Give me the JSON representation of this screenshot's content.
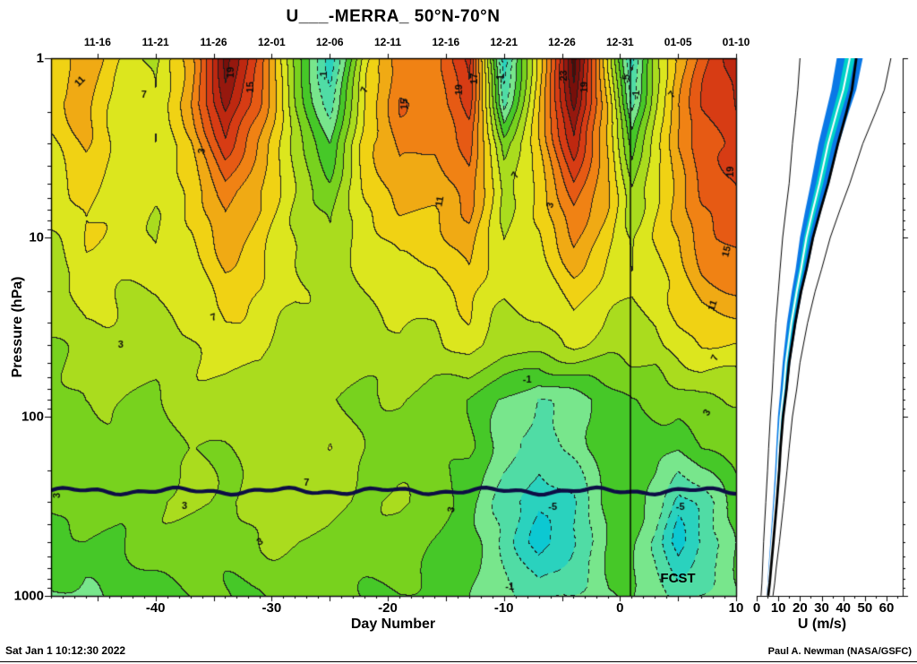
{
  "title": "U___-MERRA_ 50°N-70°N",
  "footer": {
    "timestamp": "Sat Jan 1 10:12:30 2022",
    "credit": "Paul A. Newman (NASA/GSFC)"
  },
  "chart_data": [
    {
      "type": "heatmap",
      "title": "U___-MERRA_ 50°N-70°N",
      "xlabel": "Day Number",
      "ylabel": "Pressure (hPa)",
      "fcst_label": "FCST",
      "xlim": [
        -49,
        10
      ],
      "x_major_ticks": [
        -40,
        -30,
        -20,
        -10,
        0,
        10
      ],
      "top_date_labels": [
        "11-16",
        "11-21",
        "11-26",
        "12-01",
        "12-06",
        "12-11",
        "12-16",
        "12-21",
        "12-26",
        "12-31",
        "01-05",
        "01-10"
      ],
      "top_date_days": [
        -45,
        -40,
        -35,
        -30,
        -25,
        -20,
        -15,
        -10,
        -5,
        0,
        5,
        10
      ],
      "pressure_ticks": [
        1,
        10,
        100,
        1000
      ],
      "y_scale": "log",
      "ylim_pressure": [
        1,
        1000
      ],
      "contour_interval": 2,
      "labeled_levels": [
        -5,
        -1,
        3,
        7,
        11,
        15,
        19,
        23
      ],
      "forecast_start_day": 0.9,
      "overlay_line_pressure": 260,
      "grid": {
        "days": [
          -49,
          -46,
          -43,
          -40,
          -37,
          -34,
          -31,
          -28,
          -25,
          -22,
          -19,
          -16,
          -13,
          -10,
          -7,
          -4,
          -1,
          1,
          3,
          5,
          7,
          10
        ],
        "pressures": [
          1,
          1.8,
          3,
          5.5,
          10,
          20,
          40,
          80,
          150,
          300,
          500,
          1000
        ],
        "values": [
          [
            9,
            13,
            9,
            6,
            12,
            24,
            16,
            4,
            -4,
            8,
            14,
            14,
            20,
            -5,
            10,
            26,
            8,
            -4,
            6,
            12,
            16,
            20
          ],
          [
            10,
            12,
            8,
            7,
            13,
            22,
            15,
            5,
            -2,
            9,
            15,
            14,
            18,
            -2,
            11,
            24,
            10,
            -2,
            7,
            13,
            17,
            19
          ],
          [
            9,
            11,
            8,
            7,
            11,
            18,
            13,
            6,
            1,
            10,
            14,
            13,
            16,
            4,
            11,
            20,
            11,
            2,
            8,
            13,
            16,
            18
          ],
          [
            8,
            10,
            8,
            7,
            10,
            14,
            11,
            7,
            4,
            9,
            12,
            12,
            14,
            6,
            10,
            16,
            11,
            5,
            9,
            12,
            15,
            17
          ],
          [
            7,
            9,
            8,
            7,
            9,
            12,
            10,
            7,
            5,
            8,
            10,
            10,
            12,
            7,
            9,
            13,
            10,
            7,
            9,
            11,
            14,
            16
          ],
          [
            6,
            8,
            7,
            7,
            8,
            10,
            9,
            7,
            6,
            7,
            8,
            8,
            10,
            7,
            8,
            10,
            8,
            7,
            8,
            10,
            12,
            13
          ],
          [
            5,
            6,
            6,
            6,
            7,
            8,
            8,
            6,
            6,
            6,
            7,
            6,
            8,
            6,
            6,
            7,
            6,
            6,
            6,
            8,
            9,
            9
          ],
          [
            4,
            5,
            5,
            5,
            6,
            6,
            6,
            5,
            5,
            5,
            5,
            4,
            3,
            1,
            -1.5,
            0,
            2,
            3,
            3,
            4,
            5,
            5
          ],
          [
            3,
            4,
            4,
            4,
            5,
            5,
            6,
            6,
            7,
            5,
            4,
            4,
            3,
            0,
            -2,
            0,
            2,
            2,
            2,
            1,
            3,
            3.5
          ],
          [
            3,
            4,
            4,
            5,
            5,
            5,
            6,
            7,
            6,
            5,
            5,
            4,
            2,
            -2,
            -5,
            -3,
            2,
            2,
            0,
            -4,
            -2,
            2
          ],
          [
            2,
            3,
            3,
            4,
            4,
            4,
            5,
            5,
            5,
            4,
            4,
            3,
            2,
            -2,
            -6,
            -3,
            1,
            1,
            -1,
            -6,
            -3,
            1
          ],
          [
            1,
            0,
            2,
            2,
            3,
            3,
            3,
            4,
            3,
            3,
            3,
            2,
            1,
            0,
            -2,
            -1,
            1,
            1,
            0,
            -2,
            -1,
            1
          ]
        ]
      },
      "contour_labels": [
        {
          "day": -46.5,
          "p": 1.35,
          "text": "11",
          "rot": -45
        },
        {
          "day": -41,
          "p": 1.6,
          "text": "7",
          "rot": 0
        },
        {
          "day": -36,
          "p": 3.3,
          "text": "3",
          "rot": -80
        },
        {
          "day": -33.5,
          "p": 1.2,
          "text": "19",
          "rot": -90
        },
        {
          "day": -31.8,
          "p": 1.45,
          "text": "15",
          "rot": -90
        },
        {
          "day": -25.5,
          "p": 1.25,
          "text": "-1",
          "rot": -90
        },
        {
          "day": -22,
          "p": 1.5,
          "text": "7",
          "rot": -70
        },
        {
          "day": -18.5,
          "p": 1.8,
          "text": "15",
          "rot": -90
        },
        {
          "day": -15.5,
          "p": 6.3,
          "text": "11",
          "rot": -80
        },
        {
          "day": -13.8,
          "p": 1.5,
          "text": "19",
          "rot": -90
        },
        {
          "day": -12.5,
          "p": 1.3,
          "text": "17",
          "rot": -90
        },
        {
          "day": -10.3,
          "p": 1.3,
          "text": "-1",
          "rot": -90
        },
        {
          "day": -9,
          "p": 4.5,
          "text": "7",
          "rot": -60
        },
        {
          "day": -6,
          "p": 6.6,
          "text": "3",
          "rot": -75
        },
        {
          "day": -4.8,
          "p": 1.25,
          "text": "23",
          "rot": -90
        },
        {
          "day": -3,
          "p": 1.45,
          "text": "19",
          "rot": -90
        },
        {
          "day": 0.6,
          "p": 1.3,
          "text": "-5",
          "rot": -90
        },
        {
          "day": 1.4,
          "p": 1.6,
          "text": "-1",
          "rot": -90
        },
        {
          "day": 4.5,
          "p": 1.6,
          "text": "7",
          "rot": -50
        },
        {
          "day": 9.5,
          "p": 4.3,
          "text": "19",
          "rot": -90
        },
        {
          "day": 9.2,
          "p": 12,
          "text": "15",
          "rot": -75
        },
        {
          "day": 8,
          "p": 24,
          "text": "11",
          "rot": -70
        },
        {
          "day": 8.2,
          "p": 47,
          "text": "7",
          "rot": -65
        },
        {
          "day": 7.5,
          "p": 95,
          "text": "3",
          "rot": -60
        },
        {
          "day": -8,
          "p": 62,
          "text": "-1",
          "rot": 0
        },
        {
          "day": -27,
          "p": 235,
          "text": "7",
          "rot": 0
        },
        {
          "day": -35,
          "p": 28,
          "text": "7",
          "rot": -20
        },
        {
          "day": -43,
          "p": 40,
          "text": "3",
          "rot": 0
        },
        {
          "day": -37.5,
          "p": 315,
          "text": "3",
          "rot": 0
        },
        {
          "day": -31,
          "p": 500,
          "text": "3",
          "rot": -30
        },
        {
          "day": -48.5,
          "p": 275,
          "text": "3",
          "rot": -90
        },
        {
          "day": -14.5,
          "p": 330,
          "text": "3",
          "rot": -80
        },
        {
          "day": -5.8,
          "p": 320,
          "text": "-5",
          "rot": 0
        },
        {
          "day": 5.2,
          "p": 320,
          "text": "-5",
          "rot": 0
        },
        {
          "day": -9.5,
          "p": 890,
          "text": "-1",
          "rot": 0
        }
      ],
      "colorscale": {
        "band_min_value": -11,
        "band_step": 2,
        "colors": [
          "#0090c8",
          "#00aad2",
          "#0cc8d2",
          "#2ad2be",
          "#50dca5",
          "#78e68c",
          "#46c828",
          "#78d21e",
          "#aadc1e",
          "#dce61e",
          "#f0d214",
          "#f0aa14",
          "#f08214",
          "#e65a14",
          "#d73c14",
          "#be2810",
          "#96180e",
          "#780f0a",
          "#500a05"
        ]
      }
    },
    {
      "type": "line",
      "xlabel": "U (m/s)",
      "x_ticks": [
        0,
        10,
        20,
        30,
        40,
        50,
        60
      ],
      "xlim": [
        0,
        67
      ],
      "y_scale": "log",
      "band_color": "#0a78e6",
      "inner_band_color": "#00d2c8",
      "pressures": [
        1,
        1.5,
        2,
        3,
        5,
        7,
        10,
        15,
        20,
        30,
        50,
        70,
        100,
        150,
        200,
        300,
        500,
        700,
        850,
        1000
      ],
      "series": [
        {
          "name": "minimum",
          "color": "#000000",
          "width": 1,
          "values": [
            20,
            19,
            18,
            16.5,
            15,
            13.5,
            12,
            10.8,
            10,
            8.8,
            7.8,
            7.2,
            6.3,
            5.5,
            5,
            4.2,
            3.2,
            2.7,
            2.4,
            2
          ]
        },
        {
          "name": "maximum",
          "color": "#000000",
          "width": 1,
          "values": [
            62,
            59,
            55,
            49,
            43,
            38.5,
            34,
            30,
            27,
            23.5,
            20,
            18.5,
            16.5,
            15,
            14,
            12.5,
            10.5,
            9,
            8.3,
            7.5
          ]
        },
        {
          "name": "band_low",
          "color": "#0a78e6",
          "width": 0,
          "values": [
            37,
            34.5,
            32,
            28.5,
            25,
            22.5,
            20,
            18,
            16.2,
            14,
            12,
            11,
            9.8,
            9,
            8.5,
            7.6,
            6.3,
            5.4,
            5,
            4.5
          ]
        },
        {
          "name": "band_high",
          "color": "#0a78e6",
          "width": 0,
          "values": [
            49,
            46,
            42.5,
            38,
            33.5,
            30,
            26.5,
            23.5,
            21,
            18.3,
            15.5,
            14.2,
            12.5,
            11.3,
            10.7,
            9.6,
            7.9,
            6.8,
            6.2,
            5.7
          ]
        },
        {
          "name": "median",
          "color": "#ffffff",
          "width": 2,
          "values": [
            43,
            40,
            37,
            33,
            29,
            26,
            23,
            20.5,
            18.5,
            16,
            13.5,
            12.5,
            11,
            10,
            9.5,
            8.5,
            7,
            6,
            5.5,
            5
          ]
        },
        {
          "name": "current",
          "color": "#000000",
          "width": 2.8,
          "values": [
            46,
            44,
            41.5,
            37.5,
            33,
            29.5,
            26,
            23,
            20.5,
            17.8,
            15,
            13.8,
            12.2,
            11,
            10.4,
            9.3,
            7.7,
            6.6,
            6,
            5.3
          ]
        }
      ]
    }
  ]
}
